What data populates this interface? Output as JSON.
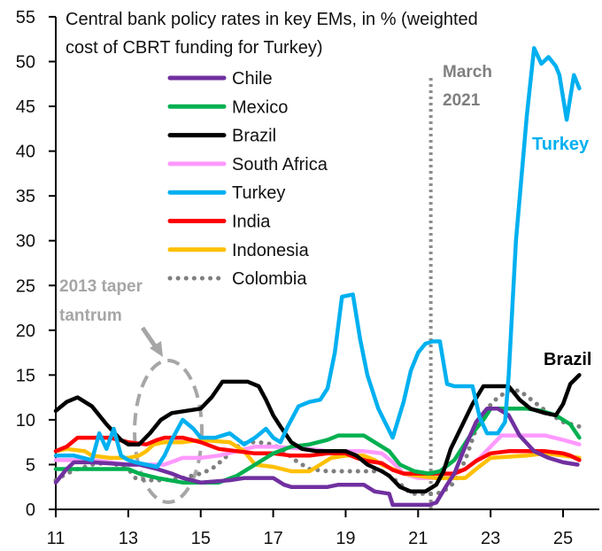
{
  "chart_data": {
    "type": "line",
    "title": "Central bank policy rates in key EMs, in % (weighted cost of CBRT funding for Turkey)",
    "title_lines": [
      "Central bank policy rates in key EMs, in % (weighted",
      "cost of CBRT funding for Turkey)"
    ],
    "xlabel": "",
    "ylabel": "",
    "xlim": [
      11,
      25.9
    ],
    "ylim": [
      0,
      55
    ],
    "x_ticks": [
      11,
      13,
      15,
      17,
      19,
      21,
      23,
      25
    ],
    "x_tick_labels": [
      "11",
      "13",
      "15",
      "17",
      "19",
      "21",
      "23",
      "25"
    ],
    "y_ticks": [
      0,
      5,
      10,
      15,
      20,
      25,
      30,
      35,
      40,
      45,
      50,
      55
    ],
    "y_tick_labels": [
      "0",
      "5",
      "10",
      "15",
      "20",
      "25",
      "30",
      "35",
      "40",
      "45",
      "50",
      "55"
    ],
    "grid": false,
    "legend_position": "top-center",
    "series": [
      {
        "name": "Chile",
        "color": "#7030a0",
        "dash": "solid",
        "x": [
          11.0,
          11.3,
          11.5,
          12.0,
          13.0,
          13.3,
          13.8,
          14.2,
          14.5,
          15.0,
          15.8,
          16.2,
          17.0,
          17.3,
          17.5,
          18.5,
          18.8,
          19.5,
          19.8,
          20.2,
          20.3,
          21.3,
          21.5,
          21.8,
          22.0,
          22.3,
          22.6,
          22.9,
          23.2,
          23.5,
          23.8,
          24.2,
          24.6,
          25.0,
          25.4
        ],
        "y": [
          3.0,
          4.5,
          5.25,
          5.25,
          5.0,
          5.0,
          4.5,
          4.0,
          3.5,
          3.0,
          3.25,
          3.5,
          3.5,
          2.75,
          2.5,
          2.5,
          2.75,
          2.75,
          2.0,
          1.75,
          0.5,
          0.5,
          0.75,
          2.75,
          4.0,
          7.0,
          9.75,
          11.25,
          11.25,
          10.5,
          8.25,
          6.5,
          5.75,
          5.25,
          5.0
        ]
      },
      {
        "name": "Mexico",
        "color": "#00b050",
        "dash": "solid",
        "x": [
          11.0,
          12.0,
          13.0,
          13.3,
          13.8,
          14.5,
          15.5,
          16.0,
          16.5,
          17.0,
          17.5,
          18.0,
          18.5,
          18.8,
          19.5,
          19.8,
          20.2,
          20.5,
          20.9,
          21.3,
          21.6,
          22.0,
          22.4,
          22.8,
          23.0,
          24.0,
          24.4,
          24.8,
          25.2,
          25.45
        ],
        "y": [
          4.5,
          4.5,
          4.5,
          4.0,
          3.5,
          3.0,
          3.0,
          3.75,
          5.0,
          6.25,
          7.0,
          7.25,
          7.75,
          8.25,
          8.25,
          7.5,
          6.5,
          5.0,
          4.25,
          4.0,
          4.25,
          5.5,
          8.0,
          10.0,
          11.25,
          11.25,
          11.0,
          10.5,
          9.5,
          8.0
        ]
      },
      {
        "name": "Brazil",
        "color": "#000000",
        "dash": "solid",
        "x": [
          11.0,
          11.3,
          11.6,
          12.0,
          12.4,
          12.8,
          13.0,
          13.3,
          13.6,
          13.9,
          14.2,
          14.6,
          15.0,
          15.3,
          15.6,
          16.3,
          16.6,
          16.8,
          17.0,
          17.2,
          17.5,
          17.8,
          18.2,
          18.6,
          19.0,
          19.3,
          19.6,
          20.0,
          20.2,
          20.5,
          20.8,
          21.2,
          21.5,
          21.7,
          21.9,
          22.2,
          22.5,
          22.8,
          23.2,
          23.5,
          23.8,
          24.1,
          24.5,
          24.8,
          25.0,
          25.2,
          25.45
        ],
        "y": [
          11.0,
          12.0,
          12.5,
          11.5,
          9.5,
          7.75,
          7.25,
          7.25,
          8.5,
          10.0,
          10.75,
          11.0,
          11.25,
          12.5,
          14.25,
          14.25,
          13.75,
          12.25,
          10.5,
          9.25,
          7.5,
          6.75,
          6.5,
          6.5,
          6.5,
          6.0,
          5.0,
          4.25,
          3.75,
          2.5,
          2.0,
          2.0,
          2.75,
          4.25,
          6.75,
          9.25,
          11.75,
          13.75,
          13.75,
          13.75,
          12.25,
          11.25,
          10.75,
          10.5,
          11.75,
          14.0,
          15.0
        ]
      },
      {
        "name": "South Africa",
        "color": "#ff99ff",
        "dash": "solid",
        "x": [
          11.0,
          12.0,
          13.0,
          13.5,
          14.0,
          14.5,
          15.0,
          15.5,
          16.0,
          16.5,
          17.0,
          18.0,
          18.5,
          19.0,
          19.5,
          20.0,
          20.3,
          20.6,
          21.0,
          21.5,
          21.9,
          22.3,
          22.7,
          23.0,
          23.3,
          24.5,
          25.0,
          25.45
        ],
        "y": [
          5.5,
          5.5,
          5.0,
          5.0,
          5.0,
          5.75,
          5.75,
          6.0,
          6.5,
          7.0,
          7.0,
          6.75,
          6.5,
          6.5,
          6.5,
          6.25,
          5.25,
          4.0,
          3.5,
          3.5,
          3.75,
          4.5,
          5.75,
          7.0,
          8.25,
          8.25,
          7.75,
          7.25
        ]
      },
      {
        "name": "Turkey",
        "color": "#00b0f0",
        "dash": "solid",
        "x": [
          11.0,
          11.5,
          12.0,
          12.2,
          12.4,
          12.6,
          12.8,
          13.0,
          13.2,
          13.5,
          13.8,
          14.0,
          14.2,
          14.5,
          14.8,
          15.0,
          15.4,
          15.8,
          16.2,
          16.5,
          16.8,
          17.0,
          17.2,
          17.4,
          17.7,
          18.0,
          18.3,
          18.5,
          18.7,
          18.9,
          19.2,
          19.4,
          19.6,
          19.9,
          20.3,
          20.6,
          20.8,
          21.0,
          21.2,
          21.4,
          21.6,
          21.8,
          22.0,
          22.5,
          22.7,
          22.9,
          23.2,
          23.4,
          23.5,
          23.7,
          24.0,
          24.2,
          24.4,
          24.6,
          24.8,
          24.9,
          25.1,
          25.3,
          25.45
        ],
        "y": [
          6.0,
          6.0,
          5.5,
          8.5,
          6.75,
          9.0,
          6.0,
          5.5,
          5.25,
          5.0,
          4.75,
          6.0,
          7.75,
          10.0,
          9.0,
          8.0,
          8.0,
          8.5,
          7.25,
          8.0,
          9.0,
          8.0,
          7.5,
          9.25,
          11.5,
          12.0,
          12.25,
          13.5,
          17.5,
          23.75,
          24.0,
          19.0,
          15.0,
          11.25,
          8.0,
          12.0,
          15.5,
          17.5,
          18.5,
          18.75,
          18.75,
          14.0,
          13.75,
          13.75,
          10.25,
          8.5,
          8.5,
          9.75,
          15.0,
          30.0,
          44.0,
          51.5,
          49.75,
          50.5,
          49.5,
          48.5,
          43.5,
          48.5,
          47.0
        ]
      },
      {
        "name": "India",
        "color": "#ff0000",
        "dash": "solid",
        "x": [
          11.0,
          11.3,
          11.6,
          12.0,
          12.5,
          13.0,
          13.5,
          13.8,
          14.0,
          14.5,
          15.0,
          15.5,
          16.0,
          16.5,
          17.0,
          17.5,
          18.0,
          18.5,
          19.0,
          19.3,
          19.6,
          20.0,
          20.3,
          20.6,
          21.0,
          21.5,
          22.0,
          22.3,
          22.6,
          23.0,
          23.5,
          24.0,
          24.5,
          25.0,
          25.2,
          25.45
        ],
        "y": [
          6.5,
          7.0,
          8.0,
          8.0,
          8.0,
          7.5,
          7.25,
          7.75,
          8.0,
          8.0,
          7.5,
          6.75,
          6.5,
          6.25,
          6.25,
          6.0,
          6.0,
          6.25,
          6.25,
          5.75,
          5.4,
          5.15,
          4.4,
          4.0,
          4.0,
          4.0,
          4.0,
          4.5,
          5.4,
          6.25,
          6.5,
          6.5,
          6.5,
          6.25,
          6.0,
          5.5
        ]
      },
      {
        "name": "Indonesia",
        "color": "#ffc000",
        "dash": "solid",
        "x": [
          11.0,
          11.3,
          11.8,
          12.0,
          12.5,
          13.0,
          13.3,
          13.5,
          13.7,
          14.0,
          14.5,
          15.0,
          15.8,
          16.0,
          16.2,
          16.5,
          17.0,
          17.5,
          18.0,
          18.3,
          18.6,
          19.0,
          19.5,
          19.8,
          20.0,
          20.3,
          20.6,
          21.0,
          21.5,
          21.8,
          22.3,
          22.6,
          23.0,
          24.0,
          24.5,
          25.0,
          25.45
        ],
        "y": [
          6.5,
          6.75,
          6.5,
          6.0,
          5.75,
          5.75,
          6.0,
          6.5,
          7.25,
          7.5,
          7.5,
          7.75,
          7.5,
          7.0,
          6.5,
          5.0,
          4.75,
          4.25,
          4.25,
          5.0,
          5.75,
          6.0,
          6.0,
          5.5,
          5.0,
          4.5,
          4.0,
          3.75,
          3.5,
          3.5,
          3.5,
          4.5,
          5.75,
          6.0,
          6.25,
          6.0,
          5.75
        ]
      },
      {
        "name": "Colombia",
        "color": "#7f7f7f",
        "dash": "dotted",
        "x": [
          11.0,
          11.3,
          11.6,
          12.0,
          12.5,
          13.0,
          13.2,
          13.5,
          14.0,
          14.5,
          15.0,
          15.3,
          15.6,
          16.0,
          16.3,
          16.6,
          17.0,
          17.3,
          17.6,
          18.0,
          18.5,
          19.0,
          19.5,
          20.0,
          20.3,
          20.6,
          20.8,
          21.0,
          21.2,
          21.5,
          21.7,
          22.0,
          22.3,
          22.6,
          22.9,
          23.2,
          23.5,
          23.8,
          24.2,
          24.6,
          25.0,
          25.45
        ],
        "y": [
          3.25,
          4.0,
          4.5,
          5.0,
          5.25,
          4.5,
          3.5,
          3.25,
          3.25,
          3.5,
          4.0,
          4.5,
          5.5,
          7.0,
          7.5,
          7.5,
          7.25,
          6.5,
          5.5,
          4.5,
          4.25,
          4.25,
          4.25,
          4.25,
          3.5,
          2.5,
          1.75,
          1.75,
          1.75,
          1.75,
          2.0,
          3.0,
          5.5,
          9.0,
          11.25,
          12.5,
          13.25,
          13.25,
          12.0,
          10.75,
          9.75,
          9.25
        ]
      }
    ],
    "annotations": {
      "taper_tantrum": [
        "2013 taper",
        "tantrum"
      ],
      "march_2021": [
        "March",
        "2021"
      ],
      "march_2021_x": 21.35,
      "turkey_label": "Turkey",
      "brazil_label": "Brazil"
    }
  }
}
